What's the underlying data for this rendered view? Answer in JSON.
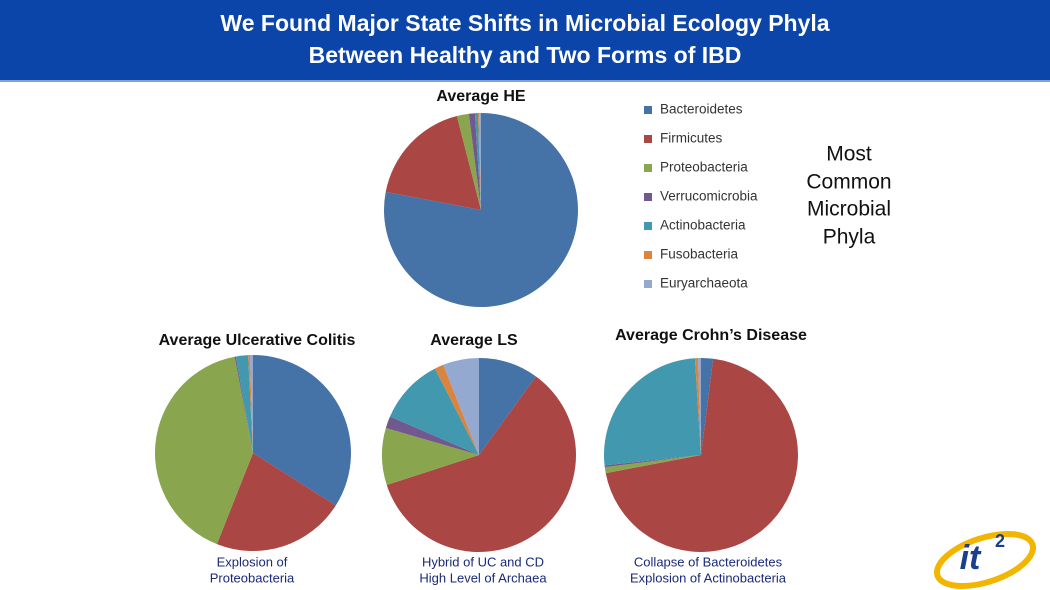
{
  "slide": {
    "title": [
      "We Found Major State Shifts in Microbial Ecology Phyla",
      "Between Healthy and Two Forms of IBD"
    ],
    "side_note": [
      "Most",
      "Common",
      "Microbial",
      "Phyla"
    ],
    "logo": {
      "text": "it",
      "superscript": "2"
    }
  },
  "chart_data": [
    {
      "type": "pie",
      "title": "Average HE",
      "categories": [
        "Bacteroidetes",
        "Firmicutes",
        "Proteobacteria",
        "Verrucomicrobia",
        "Actinobacteria",
        "Fusobacteria",
        "Euryarchaeota"
      ],
      "colors": [
        "#4572a7",
        "#aa4643",
        "#89a54e",
        "#71588f",
        "#4198af",
        "#db843d",
        "#93a9cf"
      ],
      "values": [
        78,
        18,
        2,
        1,
        0.5,
        0.2,
        0.3
      ]
    },
    {
      "type": "pie",
      "title": "Average Ulcerative Colitis",
      "annotation": [
        "Explosion of",
        "Proteobacteria"
      ],
      "categories": [
        "Bacteroidetes",
        "Firmicutes",
        "Proteobacteria",
        "Verrucomicrobia",
        "Actinobacteria",
        "Fusobacteria",
        "Euryarchaeota"
      ],
      "colors": [
        "#4572a7",
        "#aa4643",
        "#89a54e",
        "#71588f",
        "#4198af",
        "#db843d",
        "#93a9cf"
      ],
      "values": [
        34,
        22,
        41,
        0.2,
        2,
        0.3,
        0.5
      ]
    },
    {
      "type": "pie",
      "title": "Average LS",
      "annotation": [
        "Hybrid of UC and CD",
        "High Level of Archaea"
      ],
      "categories": [
        "Bacteroidetes",
        "Firmicutes",
        "Proteobacteria",
        "Verrucomicrobia",
        "Actinobacteria",
        "Fusobacteria",
        "Euryarchaeota"
      ],
      "colors": [
        "#4572a7",
        "#aa4643",
        "#89a54e",
        "#71588f",
        "#4198af",
        "#db843d",
        "#93a9cf"
      ],
      "values": [
        10,
        60,
        9.5,
        2,
        11,
        1.5,
        6
      ]
    },
    {
      "type": "pie",
      "title": "Average Crohn’s Disease",
      "annotation": [
        "Collapse of Bacteroidetes",
        "Explosion of Actinobacteria"
      ],
      "categories": [
        "Bacteroidetes",
        "Firmicutes",
        "Proteobacteria",
        "Verrucomicrobia",
        "Actinobacteria",
        "Fusobacteria",
        "Euryarchaeota"
      ],
      "colors": [
        "#4572a7",
        "#aa4643",
        "#89a54e",
        "#71588f",
        "#4198af",
        "#db843d",
        "#93a9cf"
      ],
      "values": [
        2,
        70,
        1,
        0.3,
        25.7,
        0.5,
        0.5
      ]
    }
  ]
}
